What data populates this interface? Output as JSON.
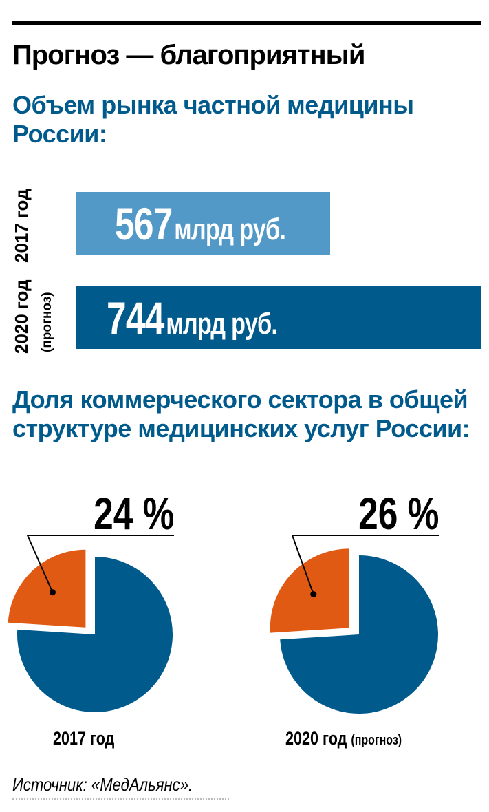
{
  "title": "Прогноз — благоприятный",
  "colors": {
    "bar_2017": "#5399c8",
    "bar_2020": "#005a8c",
    "pie_main": "#005a8c",
    "pie_commercial": "#e05a14",
    "subtitle": "#005a8c"
  },
  "chart_data": [
    {
      "type": "bar",
      "orientation": "horizontal",
      "title": "Объем рынка частной медицины России:",
      "categories": [
        "2017 год",
        "2020 год (прогноз)"
      ],
      "category_parts": [
        {
          "year": "2017 год",
          "note": ""
        },
        {
          "year": "2020 год",
          "note": "(прогноз)"
        }
      ],
      "values": [
        567,
        744
      ],
      "unit": "млрд руб.",
      "value_labels": [
        "567",
        "744"
      ]
    },
    {
      "type": "pie",
      "title": "Доля коммерческого сектора в общей структуре медицинских услуг России:",
      "pies": [
        {
          "label": "2017 год",
          "note": "",
          "commercial_share": 24,
          "value_label": "24 %"
        },
        {
          "label": "2020 год",
          "note": "(прогноз)",
          "commercial_share": 26,
          "value_label": "26 %"
        }
      ]
    }
  ],
  "source": "Источник: «МедАльянс»."
}
